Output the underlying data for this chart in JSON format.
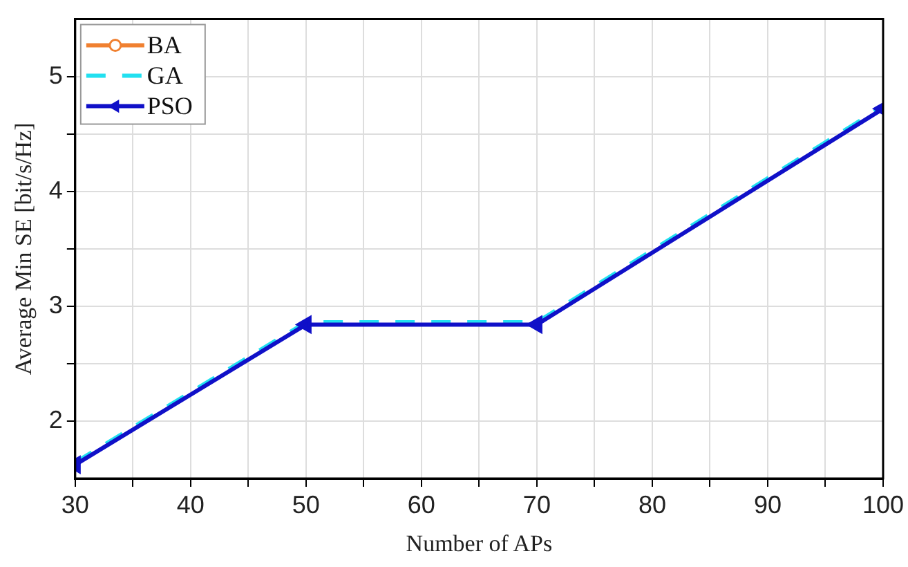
{
  "chart_data": {
    "type": "line",
    "xlabel": "Number of APs",
    "ylabel": "Average Min SE [bit/s/Hz]",
    "x": [
      30,
      50,
      70,
      100
    ],
    "series": [
      {
        "name": "BA",
        "color": "#f08030",
        "values": [
          null,
          null,
          null,
          null
        ],
        "marker": "circle",
        "line_style": "solid"
      },
      {
        "name": "GA",
        "color": "#22e0f0",
        "values": [
          1.64,
          2.86,
          2.86,
          4.74
        ],
        "marker": "none",
        "line_style": "dashed"
      },
      {
        "name": "PSO",
        "color": "#1010c8",
        "values": [
          1.62,
          2.84,
          2.84,
          4.72
        ],
        "marker": "triangle",
        "line_style": "solid"
      }
    ],
    "xlim": [
      30,
      100
    ],
    "xticks": [
      30,
      {
        "value": 35,
        "label": null
      },
      40,
      {
        "value": 45,
        "label": null
      },
      50,
      {
        "value": 55,
        "label": null
      },
      60,
      {
        "value": 65,
        "label": null
      },
      70,
      {
        "value": 75,
        "label": null
      },
      80,
      {
        "value": 85,
        "label": null
      },
      90,
      {
        "value": 95,
        "label": null
      },
      100
    ],
    "ylim": [
      1.5,
      5.5
    ],
    "yticks": [
      2,
      {
        "value": 2.5,
        "label": null
      },
      3,
      {
        "value": 3.5,
        "label": null
      },
      4,
      {
        "value": 4.5,
        "label": null
      },
      5
    ],
    "grid": true,
    "legend": "top left"
  }
}
